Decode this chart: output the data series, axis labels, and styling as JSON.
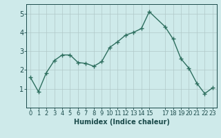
{
  "x": [
    0,
    1,
    2,
    3,
    4,
    5,
    6,
    7,
    8,
    9,
    10,
    11,
    12,
    13,
    14,
    15,
    17,
    18,
    19,
    20,
    21,
    22,
    23
  ],
  "y": [
    1.6,
    0.85,
    1.85,
    2.5,
    2.8,
    2.8,
    2.4,
    2.35,
    2.2,
    2.45,
    3.2,
    3.5,
    3.85,
    4.0,
    4.2,
    5.1,
    4.3,
    3.65,
    2.6,
    2.1,
    1.3,
    0.75,
    1.05
  ],
  "line_color": "#2d6e5e",
  "marker": "+",
  "marker_size": 4,
  "bg_color": "#ceeaea",
  "grid_color": "#b0c8c8",
  "xlabel": "Humidex (Indice chaleur)",
  "xlabel_color": "#1a4a4a",
  "xlim": [
    -0.5,
    23.5
  ],
  "ylim": [
    0,
    5.5
  ],
  "yticks": [
    1,
    2,
    3,
    4,
    5
  ],
  "xticks": [
    0,
    1,
    2,
    3,
    4,
    5,
    6,
    7,
    8,
    9,
    10,
    11,
    12,
    13,
    14,
    15,
    17,
    18,
    19,
    20,
    21,
    22,
    23
  ],
  "xtick_labels": [
    "0",
    "1",
    "2",
    "3",
    "4",
    "5",
    "6",
    "7",
    "8",
    "9",
    "10",
    "11",
    "12",
    "13",
    "14",
    "15",
    "17",
    "18",
    "19",
    "20",
    "21",
    "22",
    "23"
  ],
  "tick_color": "#1a4a4a",
  "font_size_label": 7,
  "font_size_tick": 6,
  "line_width": 1.0,
  "marker_edge_width": 1.0
}
